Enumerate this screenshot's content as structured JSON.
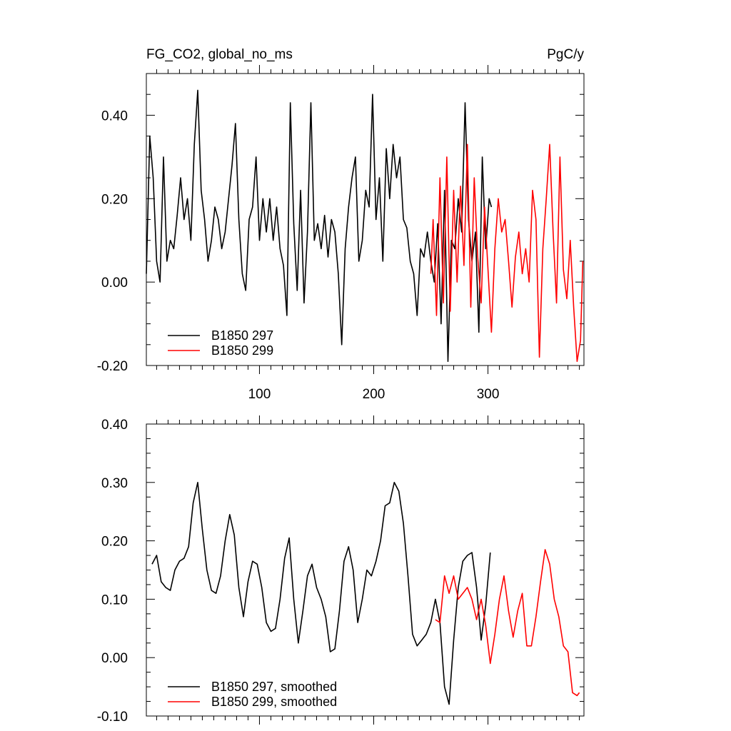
{
  "chart_data": [
    {
      "type": "line",
      "title_left": "FG_CO2, global_no_ms",
      "title_right": "PgC/y",
      "xlim": [
        1,
        384
      ],
      "ylim": [
        -0.2,
        0.5
      ],
      "x_ticks": [
        100,
        200,
        300
      ],
      "x_tick_labels": [
        "100",
        "200",
        "300"
      ],
      "y_ticks": [
        -0.2,
        0.0,
        0.2,
        0.4
      ],
      "y_tick_labels": [
        "-0.20",
        "0.00",
        "0.20",
        "0.40"
      ],
      "legend_position": "bottom-left",
      "series": [
        {
          "name": "B1850 297",
          "color": "#000000",
          "x": [
            1,
            4,
            7,
            10,
            13,
            16,
            19,
            22,
            25,
            28,
            31,
            34,
            37,
            40,
            43,
            46,
            49,
            52,
            55,
            58,
            61,
            64,
            67,
            70,
            73,
            76,
            79,
            82,
            85,
            88,
            91,
            94,
            97,
            100,
            103,
            106,
            109,
            112,
            115,
            118,
            121,
            124,
            127,
            130,
            133,
            136,
            139,
            142,
            145,
            148,
            151,
            154,
            157,
            160,
            163,
            166,
            169,
            172,
            175,
            178,
            181,
            184,
            187,
            190,
            193,
            196,
            199,
            202,
            205,
            208,
            211,
            214,
            217,
            220,
            223,
            226,
            229,
            232,
            235,
            238,
            241,
            244,
            247,
            250,
            253,
            256,
            259,
            262,
            265,
            268,
            271,
            274,
            277,
            280,
            283,
            286,
            289,
            292,
            295,
            298,
            301,
            303
          ],
          "y": [
            0.02,
            0.35,
            0.25,
            0.05,
            0.0,
            0.3,
            0.05,
            0.1,
            0.08,
            0.16,
            0.25,
            0.15,
            0.2,
            0.1,
            0.33,
            0.46,
            0.22,
            0.15,
            0.05,
            0.1,
            0.18,
            0.15,
            0.08,
            0.12,
            0.2,
            0.28,
            0.38,
            0.15,
            0.02,
            -0.02,
            0.15,
            0.18,
            0.3,
            0.1,
            0.2,
            0.12,
            0.2,
            0.1,
            0.18,
            0.08,
            0.04,
            -0.08,
            0.43,
            0.14,
            -0.02,
            0.22,
            -0.05,
            0.12,
            0.43,
            0.1,
            0.14,
            0.08,
            0.16,
            0.06,
            0.15,
            0.12,
            0.02,
            -0.15,
            0.08,
            0.18,
            0.25,
            0.3,
            0.05,
            0.1,
            0.22,
            0.18,
            0.45,
            0.15,
            0.25,
            0.05,
            0.32,
            0.2,
            0.33,
            0.25,
            0.3,
            0.15,
            0.13,
            0.05,
            0.02,
            -0.08,
            0.08,
            0.06,
            0.12,
            0.05,
            0.0,
            0.14,
            -0.1,
            0.22,
            -0.19,
            0.1,
            0.08,
            0.2,
            0.12,
            0.43,
            0.15,
            0.05,
            0.12,
            -0.12,
            0.3,
            0.08,
            0.2,
            0.18
          ]
        },
        {
          "name": "B1850 299",
          "color": "#ff0000",
          "x": [
            250,
            252,
            255,
            258,
            261,
            264,
            267,
            270,
            273,
            276,
            279,
            282,
            285,
            288,
            291,
            294,
            297,
            300,
            303,
            306,
            309,
            312,
            315,
            318,
            321,
            324,
            327,
            330,
            333,
            336,
            339,
            342,
            345,
            348,
            351,
            354,
            357,
            360,
            363,
            366,
            369,
            372,
            375,
            378,
            381,
            383
          ],
          "y": [
            0.02,
            0.15,
            -0.08,
            0.25,
            -0.05,
            0.3,
            -0.07,
            0.22,
            0.0,
            0.23,
            0.04,
            0.33,
            -0.06,
            0.25,
            0.06,
            -0.05,
            0.18,
            0.03,
            -0.12,
            0.08,
            0.2,
            0.12,
            0.15,
            0.05,
            -0.06,
            0.06,
            0.12,
            0.02,
            0.08,
            0.0,
            0.22,
            0.15,
            -0.18,
            0.08,
            0.2,
            0.33,
            0.12,
            -0.05,
            0.3,
            0.03,
            -0.04,
            0.1,
            -0.06,
            -0.19,
            -0.14,
            0.05
          ]
        }
      ]
    },
    {
      "type": "line",
      "xlim": [
        1,
        384
      ],
      "ylim": [
        -0.1,
        0.4
      ],
      "x_ticks": [
        100,
        200,
        300
      ],
      "y_ticks": [
        -0.1,
        0.0,
        0.1,
        0.2,
        0.3,
        0.4
      ],
      "y_tick_labels": [
        "-0.10",
        "0.00",
        "0.10",
        "0.20",
        "0.30",
        "0.40"
      ],
      "legend_position": "bottom-left",
      "series": [
        {
          "name": "B1850 297, smoothed",
          "color": "#000000",
          "x": [
            6,
            10,
            14,
            18,
            22,
            26,
            30,
            34,
            38,
            42,
            46,
            50,
            54,
            58,
            62,
            66,
            70,
            74,
            78,
            82,
            86,
            90,
            94,
            98,
            102,
            106,
            110,
            114,
            118,
            122,
            126,
            130,
            134,
            138,
            142,
            146,
            150,
            154,
            158,
            162,
            166,
            170,
            174,
            178,
            182,
            186,
            190,
            194,
            198,
            202,
            206,
            210,
            214,
            218,
            222,
            226,
            230,
            234,
            238,
            242,
            246,
            250,
            254,
            258,
            262,
            266,
            270,
            274,
            278,
            282,
            286,
            290,
            294,
            298,
            302
          ],
          "y": [
            0.16,
            0.175,
            0.13,
            0.12,
            0.115,
            0.15,
            0.165,
            0.17,
            0.19,
            0.265,
            0.3,
            0.22,
            0.15,
            0.115,
            0.11,
            0.14,
            0.2,
            0.245,
            0.21,
            0.12,
            0.07,
            0.13,
            0.165,
            0.16,
            0.12,
            0.06,
            0.045,
            0.05,
            0.1,
            0.17,
            0.205,
            0.1,
            0.025,
            0.08,
            0.14,
            0.16,
            0.12,
            0.1,
            0.07,
            0.01,
            0.015,
            0.08,
            0.165,
            0.19,
            0.15,
            0.06,
            0.1,
            0.15,
            0.14,
            0.165,
            0.2,
            0.26,
            0.265,
            0.3,
            0.285,
            0.23,
            0.14,
            0.04,
            0.02,
            0.03,
            0.04,
            0.06,
            0.1,
            0.06,
            -0.05,
            -0.08,
            0.03,
            0.12,
            0.165,
            0.175,
            0.18,
            0.12,
            0.03,
            0.09,
            0.18
          ]
        },
        {
          "name": "B1850 299, smoothed",
          "color": "#ff0000",
          "x": [
            254,
            258,
            262,
            266,
            270,
            274,
            278,
            282,
            286,
            290,
            294,
            298,
            302,
            306,
            310,
            314,
            318,
            322,
            326,
            330,
            334,
            338,
            342,
            346,
            350,
            354,
            358,
            362,
            366,
            370,
            374,
            378,
            380
          ],
          "y": [
            0.065,
            0.06,
            0.14,
            0.11,
            0.14,
            0.1,
            0.11,
            0.12,
            0.1,
            0.065,
            0.1,
            0.055,
            -0.01,
            0.04,
            0.1,
            0.14,
            0.08,
            0.035,
            0.08,
            0.11,
            0.02,
            0.02,
            0.07,
            0.13,
            0.185,
            0.16,
            0.1,
            0.07,
            0.02,
            0.01,
            -0.06,
            -0.065,
            -0.06
          ]
        }
      ]
    }
  ]
}
